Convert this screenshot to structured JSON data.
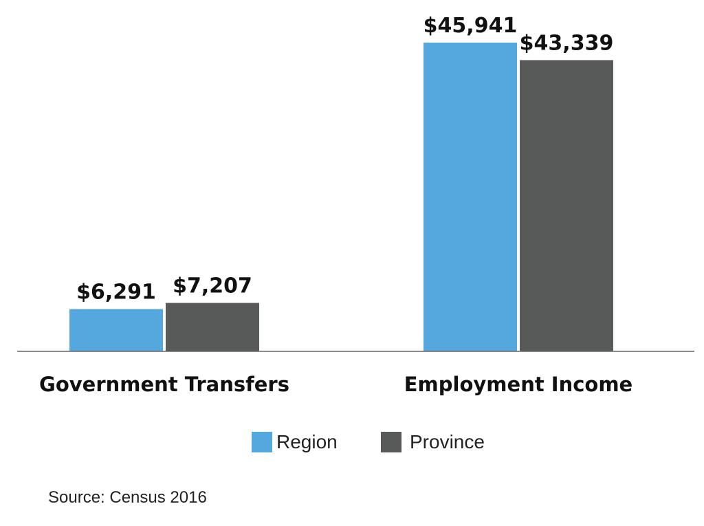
{
  "chart_data": {
    "type": "bar",
    "categories": [
      "Government Transfers",
      "Employment Income"
    ],
    "series": [
      {
        "name": "Region",
        "color": "#55a8dd",
        "values": [
          6291,
          45941
        ],
        "labels": [
          "$6,291",
          "$45,941"
        ]
      },
      {
        "name": "Province",
        "color": "#585a59",
        "values": [
          7207,
          43339
        ],
        "labels": [
          "$7,207",
          "$43,339"
        ]
      }
    ],
    "ylim": [
      0,
      45941
    ],
    "grid": false,
    "legend_position": "bottom"
  },
  "source": "Source: Census 2016"
}
